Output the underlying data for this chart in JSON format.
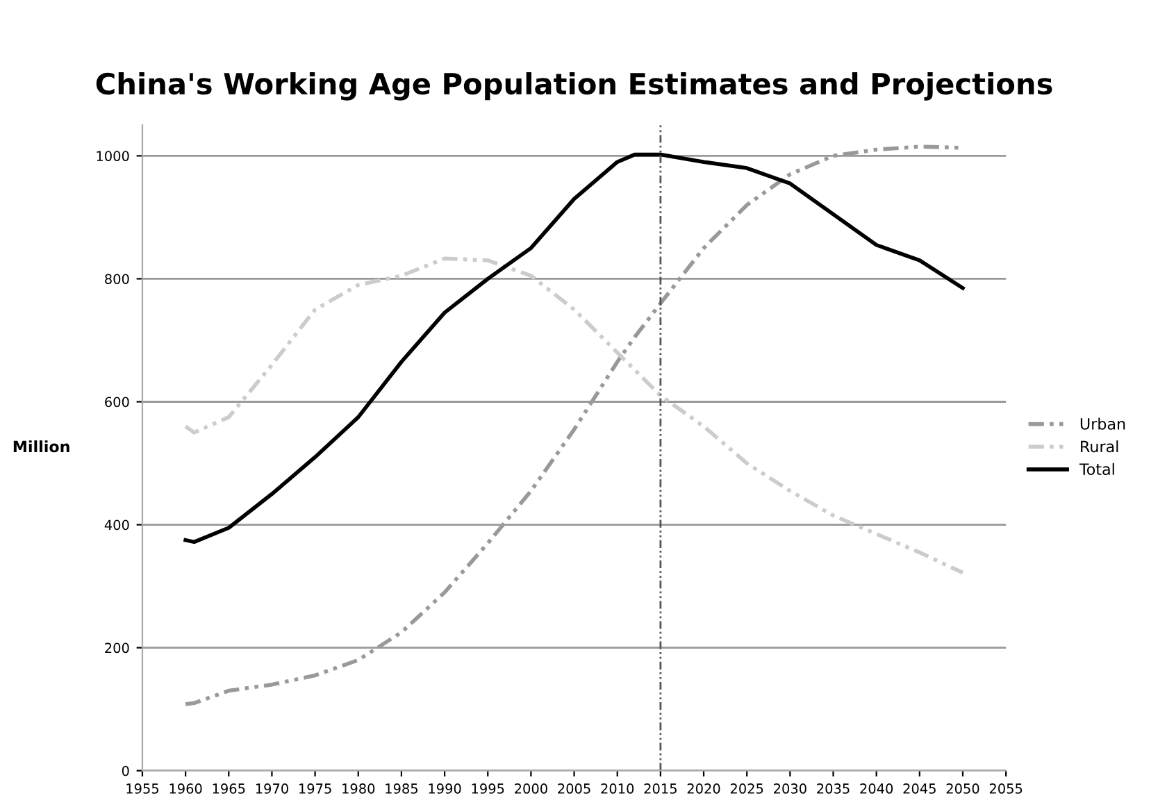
{
  "chart_data": {
    "type": "line",
    "title": "China's Working Age Population Estimates and Projections",
    "ylabel": "Million",
    "x": [
      1960,
      1961,
      1965,
      1970,
      1975,
      1980,
      1985,
      1990,
      1995,
      2000,
      2005,
      2010,
      2012,
      2015,
      2020,
      2025,
      2030,
      2035,
      2040,
      2045,
      2050
    ],
    "series": [
      {
        "name": "Urban",
        "color": "#999999",
        "line_style": "dashed",
        "values": [
          108,
          110,
          130,
          140,
          155,
          180,
          225,
          290,
          370,
          455,
          555,
          665,
          705,
          760,
          850,
          920,
          970,
          1000,
          1010,
          1015,
          1013
        ]
      },
      {
        "name": "Rural",
        "color": "#cccccc",
        "line_style": "dashed",
        "values": [
          560,
          550,
          575,
          660,
          750,
          790,
          805,
          833,
          830,
          805,
          750,
          680,
          652,
          610,
          560,
          500,
          455,
          415,
          385,
          355,
          322
        ]
      },
      {
        "name": "Total",
        "color": "#000000",
        "line_style": "solid",
        "values": [
          375,
          372,
          395,
          450,
          510,
          575,
          665,
          745,
          800,
          850,
          930,
          990,
          1002,
          1002,
          990,
          980,
          955,
          905,
          855,
          830,
          785
        ]
      }
    ],
    "xlim": [
      1955,
      2055
    ],
    "xticks": [
      1955,
      1960,
      1965,
      1970,
      1975,
      1980,
      1985,
      1990,
      1995,
      2000,
      2005,
      2010,
      2015,
      2020,
      2025,
      2030,
      2035,
      2040,
      2045,
      2050,
      2055
    ],
    "ylim": [
      0,
      1050
    ],
    "yticks": [
      0,
      200,
      400,
      600,
      800,
      1000
    ],
    "ref_lines": [
      {
        "axis": "x",
        "value": 2015,
        "color": "#555555",
        "line_style": "dashed"
      }
    ],
    "grid": "y",
    "legend": "right",
    "marker": "none"
  }
}
